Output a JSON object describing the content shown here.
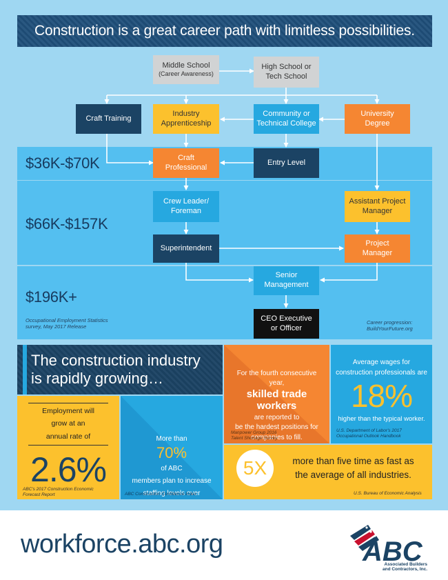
{
  "title": "Construction is a great career path with limitless possibilities.",
  "salary_bands": [
    "$36K-$70K",
    "$66K-$157K",
    "$196K+"
  ],
  "nodes": {
    "middle_school": "Middle School",
    "middle_school_sub": "(Career Awareness)",
    "high_school": "High School or\nTech School",
    "craft_training": "Craft Training",
    "industry_apprenticeship": "Industry\nApprenticeship",
    "community_college": "Community or\nTechnical College",
    "university_degree": "University Degree",
    "craft_professional": "Craft\nProfessional",
    "entry_level": "Entry Level",
    "crew_leader": "Crew Leader/\nForeman",
    "assistant_pm": "Assistant Project\nManager",
    "superintendent": "Superintendent",
    "project_manager": "Project\nManager",
    "senior_management": "Senior\nManagement",
    "ceo": "CEO Executive\nor Officer"
  },
  "source_left": "Occupational Employment Statistics\nsurvey, May 2017 Release",
  "source_right": "Career progression:\nBuildYourFuture.org",
  "growth_title": "The construction industry\nis rapidly growing…",
  "tiles": {
    "skilled": {
      "pre": "For the fourth consecutive\nyear,",
      "highlight": "skilled trade\nworkers",
      "post": "are reported to\nbe the hardest positions for\ncompanies to fill.",
      "source": "Manpower Group 2016\nTalent Shortage Survey"
    },
    "wages": {
      "text_top": "Average wages for\nconstruction professionals are",
      "pct": "18%",
      "text_bottom": "higher than the typical worker.",
      "source": "U.S. Department of Labor's 2017\nOccupational Outlook Handbook"
    },
    "employment": {
      "text_top": "Employment will\ngrow at an\nannual rate of",
      "pct": "2.6%",
      "source": "ABC's 2017 Construction Economic\nForecast Report"
    },
    "staffing": {
      "pre": "More than",
      "pct": "70%",
      "post": "of ABC\nmembers plan to increase\nstaffing levels over\nthe next six months.",
      "source": "ABC Construction Confidence Index"
    },
    "fivex": {
      "badge": "5X",
      "text": "more than five time as fast as\nthe average of all industries.",
      "source": "U.S. Bureau of Economic Analysis"
    }
  },
  "footer_url": "workforce.abc.org",
  "logo": {
    "text": "ABC",
    "subtitle": "Associated Builders\nand Contractors, Inc."
  },
  "colors": {
    "navy": "#1b4364",
    "light_blue": "#26a8e0",
    "orange": "#f58632",
    "yellow": "#fcc12d",
    "red": "#c8102e"
  }
}
